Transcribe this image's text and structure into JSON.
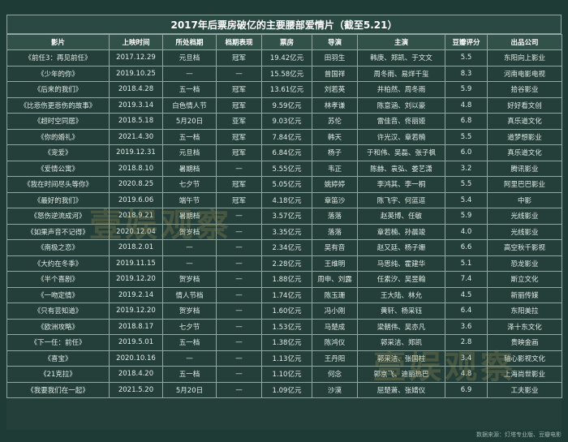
{
  "title": "2017年后票房破亿的主要腰部爱情片（截至5.21）",
  "headers": [
    "影片",
    "上映时间",
    "所处档期",
    "档期表现",
    "票房",
    "导演",
    "主演",
    "豆瓣评分",
    "出品公司"
  ],
  "rows": [
    [
      "《前任3：再见前任》",
      "2017.12.29",
      "元旦档",
      "冠军",
      "19.42亿元",
      "田羽生",
      "韩庚、郑凯、于文文",
      "5.5",
      "东阳向上影业"
    ],
    [
      "《少年的你》",
      "2019.10.25",
      "—",
      "—",
      "15.58亿元",
      "曾国祥",
      "周冬雨、易烊千玺",
      "8.3",
      "河南电影电视"
    ],
    [
      "《后来的我们》",
      "2018.4.28",
      "五一档",
      "冠军",
      "13.61亿元",
      "刘若英",
      "井柏然、周冬雨",
      "5.9",
      "拾谷影业"
    ],
    [
      "《比悲伤更悲伤的故事》",
      "2019.3.14",
      "白色情人节",
      "冠军",
      "9.59亿元",
      "林孝谦",
      "陈意涵、刘以豪",
      "4.8",
      "好好看文创"
    ],
    [
      "《超时空同居》",
      "2018.5.18",
      "5月20日",
      "亚军",
      "9.03亿元",
      "苏伦",
      "雷佳音、佟丽娅",
      "6.8",
      "真乐道文化"
    ],
    [
      "《你的婚礼》",
      "2021.4.30",
      "五一档",
      "冠军",
      "7.84亿元",
      "韩天",
      "许光汉、章若楠",
      "5.5",
      "道梦想影业"
    ],
    [
      "《宠爱》",
      "2019.12.31",
      "元旦档",
      "冠军",
      "6.84亿元",
      "杨子",
      "于和伟、吴磊、张子枫",
      "6.0",
      "真乐道文化"
    ],
    [
      "《爱情公寓》",
      "2018.8.10",
      "暑期档",
      "—",
      "5.55亿元",
      "韦正",
      "陈赫、袁弘、娄艺潇",
      "3.2",
      "腾讯影业"
    ],
    [
      "《我在时间尽头等你》",
      "2020.8.25",
      "七夕节",
      "冠军",
      "5.05亿元",
      "姚婷婷",
      "李鸿其、李一桐",
      "5.5",
      "阿里巴巴影业"
    ],
    [
      "《最好的我们》",
      "2019.6.06",
      "端午节",
      "冠军",
      "4.18亿元",
      "章笛沙",
      "陈飞宇、何蓝逗",
      "5.4",
      "中影"
    ],
    [
      "《怒伤逆流成河》",
      "2018.9.21",
      "暑期档",
      "—",
      "3.57亿元",
      "落落",
      "赵英博、任敏",
      "5.9",
      "光线影业"
    ],
    [
      "《如果声音不记得》",
      "2020.12.04",
      "贺岁档",
      "—",
      "3.35亿元",
      "落落",
      "章若楠、孙晨竣",
      "4.0",
      "光线影业"
    ],
    [
      "《南极之恋》",
      "2018.2.01",
      "—",
      "—",
      "2.34亿元",
      "吴有音",
      "赵又廷、杨子姗",
      "6.6",
      "高空秋千影视"
    ],
    [
      "《大约在冬季》",
      "2019.11.15",
      "—",
      "—",
      "2.28亿元",
      "王维明",
      "马思纯、霍建华",
      "5.1",
      "恐龙影业"
    ],
    [
      "《半个喜剧》",
      "2019.12.20",
      "贺岁档",
      "—",
      "1.88亿元",
      "周申、刘露",
      "任素汐、吴昱翰",
      "7.4",
      "斯立文化"
    ],
    [
      "《一吻定情》",
      "2019.2.14",
      "情人节档",
      "—",
      "1.74亿元",
      "陈玉珊",
      "王大陆、林允",
      "4.5",
      "新丽传媒"
    ],
    [
      "《只有芸知道》",
      "2019.12.20",
      "贺岁档",
      "—",
      "1.60亿元",
      "冯小刚",
      "黄轩、杨采钰",
      "6.4",
      "东阳美拉"
    ],
    [
      "《欧洲攻略》",
      "2018.8.17",
      "七夕节",
      "—",
      "1.53亿元",
      "马楚成",
      "梁朝伟、吴亦凡",
      "3.6",
      "泽十东文化"
    ],
    [
      "《下一任：前任》",
      "2019.5.01",
      "五一档",
      "—",
      "1.38亿元",
      "陈鸿仪",
      "郭采洁、郑凯",
      "2.8",
      "贵映金画"
    ],
    [
      "《喜宝》",
      "2020.10.16",
      "—",
      "—",
      "1.13亿元",
      "王丹阳",
      "郭采洁、张国柱",
      "3.4",
      "轴心影视文化"
    ],
    [
      "《21克拉》",
      "2018.4.20",
      "五一档",
      "—",
      "1.10亿元",
      "何念",
      "郭京飞、迪丽热巴",
      "4.8",
      "上海尚世影业"
    ],
    [
      "《我要我们在一起》",
      "2021.5.20",
      "5月20日",
      "—",
      "1.09亿元",
      "沙漠",
      "屈楚萧、张婧仪",
      "6.9",
      "工夫影业"
    ]
  ],
  "footer": "数据来源：灯塔专业版、豆瓣电影",
  "watermark": "壹娱观察"
}
